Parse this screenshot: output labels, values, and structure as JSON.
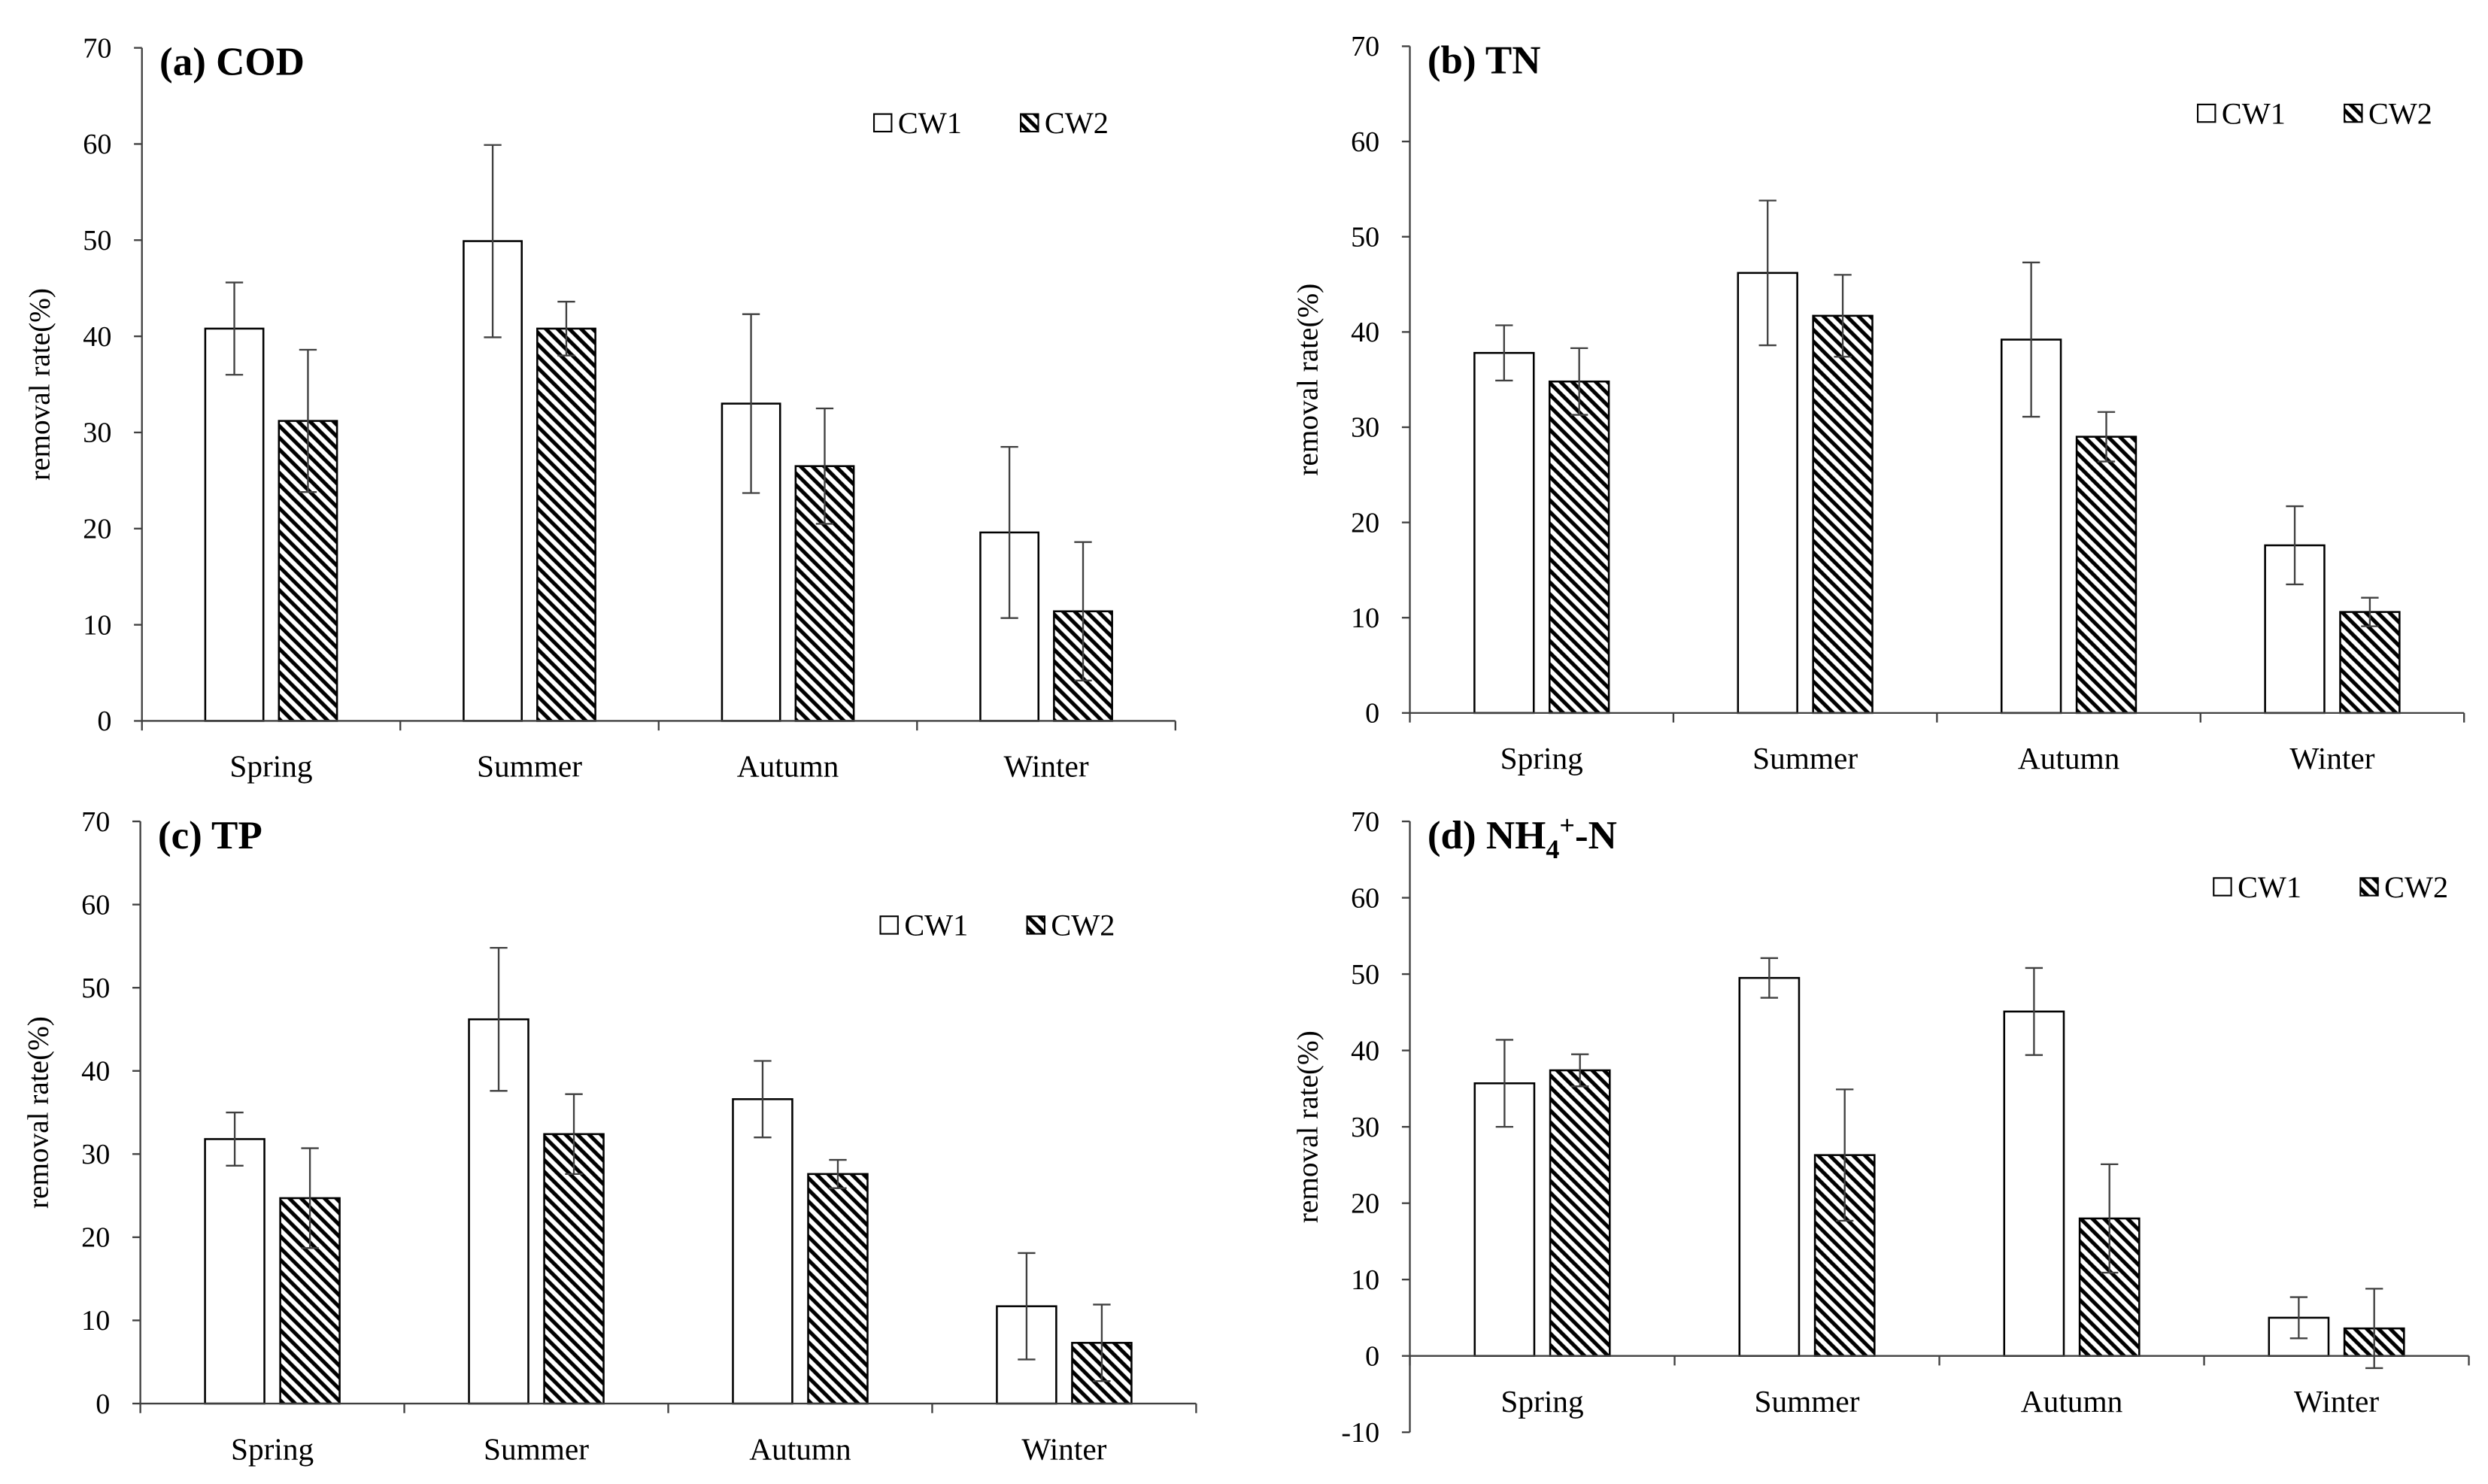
{
  "chart_data": [
    {
      "type": "bar",
      "title_parts": [
        {
          "text": "(a) COD"
        }
      ],
      "ylabel": "removal rate(%)",
      "categories": [
        "Spring",
        "Summer",
        "Autumn",
        "Winter"
      ],
      "ylim": [
        0,
        70
      ],
      "yticks": [
        0,
        10,
        20,
        30,
        40,
        50,
        60,
        70
      ],
      "grid": false,
      "legend_position": "top-right",
      "edge_color": "#000000",
      "axis_color": "#404040",
      "errorbar_color": "#404040",
      "series": [
        {
          "name": "CW1",
          "fill": "#ffffff",
          "hatch": false,
          "values": [
            40.8,
            49.9,
            33.0,
            19.6
          ],
          "errors": [
            4.8,
            10.0,
            9.3,
            8.9
          ]
        },
        {
          "name": "CW2",
          "fill": "#ffffff",
          "hatch": true,
          "values": [
            31.2,
            40.8,
            26.5,
            11.4
          ],
          "errors": [
            7.4,
            2.8,
            6.0,
            7.2
          ]
        }
      ]
    },
    {
      "type": "bar",
      "title_parts": [
        {
          "text": "(b) TN"
        }
      ],
      "ylabel": "removal rate(%)",
      "categories": [
        "Spring",
        "Summer",
        "Autumn",
        "Winter"
      ],
      "ylim": [
        0,
        70
      ],
      "yticks": [
        0,
        10,
        20,
        30,
        40,
        50,
        60,
        70
      ],
      "grid": false,
      "legend_position": "top-right",
      "edge_color": "#000000",
      "axis_color": "#404040",
      "errorbar_color": "#404040",
      "series": [
        {
          "name": "CW1",
          "fill": "#ffffff",
          "hatch": false,
          "values": [
            37.8,
            46.2,
            39.2,
            17.6
          ],
          "errors": [
            2.9,
            7.6,
            8.1,
            4.1
          ]
        },
        {
          "name": "CW2",
          "fill": "#ffffff",
          "hatch": true,
          "values": [
            34.8,
            41.7,
            29.0,
            10.6
          ],
          "errors": [
            3.5,
            4.3,
            2.6,
            1.5
          ]
        }
      ]
    },
    {
      "type": "bar",
      "title_parts": [
        {
          "text": "(c) TP"
        }
      ],
      "ylabel": "removal rate(%)",
      "categories": [
        "Spring",
        "Summer",
        "Autumn",
        "Winter"
      ],
      "ylim": [
        0,
        70
      ],
      "yticks": [
        0,
        10,
        20,
        30,
        40,
        50,
        60,
        70
      ],
      "grid": false,
      "legend_position": "top-right",
      "edge_color": "#000000",
      "axis_color": "#404040",
      "errorbar_color": "#404040",
      "series": [
        {
          "name": "CW1",
          "fill": "#ffffff",
          "hatch": false,
          "values": [
            31.8,
            46.2,
            36.6,
            11.7
          ],
          "errors": [
            3.2,
            8.6,
            4.6,
            6.4
          ]
        },
        {
          "name": "CW2",
          "fill": "#ffffff",
          "hatch": true,
          "values": [
            24.7,
            32.4,
            27.6,
            7.3
          ],
          "errors": [
            6.0,
            4.8,
            1.7,
            4.6
          ]
        }
      ]
    },
    {
      "type": "bar",
      "title_parts": [
        {
          "text": "(d) NH"
        },
        {
          "text": "4",
          "subscript": true
        },
        {
          "text": "+",
          "superscript": true
        },
        {
          "text": "-N"
        }
      ],
      "ylabel": "removal rate(%)",
      "categories": [
        "Spring",
        "Summer",
        "Autumn",
        "Winter"
      ],
      "ylim": [
        -10,
        70
      ],
      "yticks": [
        -10,
        0,
        10,
        20,
        30,
        40,
        50,
        60,
        70
      ],
      "grid": false,
      "legend_position": "top-right",
      "edge_color": "#000000",
      "axis_color": "#404040",
      "errorbar_color": "#404040",
      "series": [
        {
          "name": "CW1",
          "fill": "#ffffff",
          "hatch": false,
          "values": [
            35.7,
            49.5,
            45.1,
            5.0
          ],
          "errors": [
            5.7,
            2.6,
            5.7,
            2.7
          ]
        },
        {
          "name": "CW2",
          "fill": "#ffffff",
          "hatch": true,
          "values": [
            37.4,
            26.3,
            18.0,
            3.6
          ],
          "errors": [
            2.1,
            8.6,
            7.1,
            5.2
          ]
        }
      ]
    }
  ]
}
